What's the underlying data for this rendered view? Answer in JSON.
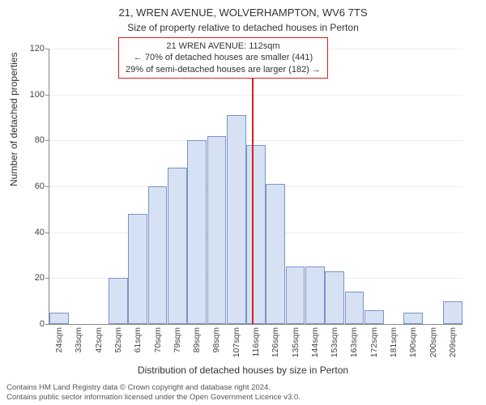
{
  "title": "21, WREN AVENUE, WOLVERHAMPTON, WV6 7TS",
  "subtitle": "Size of property relative to detached houses in Perton",
  "yaxis_label": "Number of detached properties",
  "xaxis_label": "Distribution of detached houses by size in Perton",
  "chart": {
    "type": "histogram",
    "ylim": [
      0,
      120
    ],
    "yticks": [
      0,
      20,
      40,
      60,
      80,
      100,
      120
    ],
    "bar_fill": "#d6e2f3",
    "bar_border": "#7a93c8",
    "grid_color": "#eeeeee",
    "axis_color": "#888888",
    "background": "#ffffff",
    "bar_width_ratio": 0.98,
    "categories": [
      "24sqm",
      "33sqm",
      "42sqm",
      "52sqm",
      "61sqm",
      "70sqm",
      "79sqm",
      "89sqm",
      "98sqm",
      "107sqm",
      "116sqm",
      "126sqm",
      "135sqm",
      "144sqm",
      "153sqm",
      "163sqm",
      "172sqm",
      "181sqm",
      "190sqm",
      "200sqm",
      "209sqm"
    ],
    "values": [
      5,
      0,
      0,
      20,
      48,
      60,
      68,
      80,
      82,
      91,
      78,
      61,
      25,
      25,
      23,
      14,
      6,
      0,
      5,
      0,
      10
    ],
    "reference_x_value": 112,
    "reference_color": "#d62020",
    "info_box": {
      "line1": "21 WREN AVENUE: 112sqm",
      "line2": "← 70% of detached houses are smaller (441)",
      "line3": "29% of semi-detached houses are larger (182) →",
      "border_color": "#d62020",
      "font_size": 11
    }
  },
  "footer": {
    "line1": "Contains HM Land Registry data © Crown copyright and database right 2024.",
    "line2": "Contains public sector information licensed under the Open Government Licence v3.0."
  }
}
